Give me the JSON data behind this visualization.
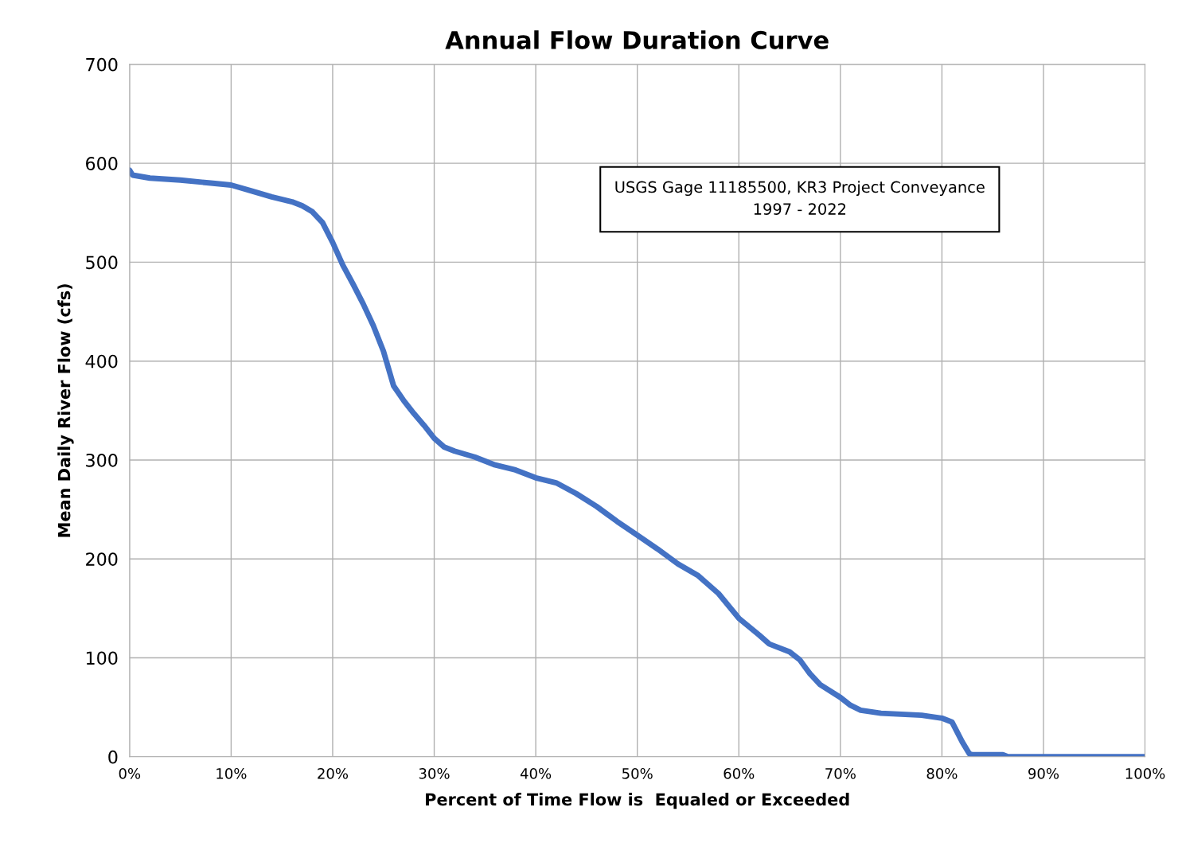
{
  "chart_data": {
    "type": "line",
    "title": "Annual Flow Duration Curve",
    "xlabel": "Percent of Time Flow is  Equaled or Exceeded",
    "ylabel": "Mean Daily River Flow (cfs)",
    "annotations": [
      "USGS Gage 11185500, KR3 Project Conveyance\n1997 - 2022"
    ],
    "x": [
      0,
      0.3,
      2,
      5,
      8,
      10,
      12,
      13,
      14,
      16,
      17,
      18,
      19,
      20,
      21,
      22,
      23,
      24,
      25,
      26,
      27,
      28,
      29,
      30,
      31,
      32,
      34,
      36,
      38,
      40,
      42,
      44,
      46,
      48,
      50,
      52,
      54,
      56,
      58,
      60,
      62,
      63,
      65,
      66,
      67,
      68,
      70,
      71,
      72,
      74,
      76,
      78,
      80,
      81,
      82,
      82.7,
      83,
      86,
      86.5,
      100
    ],
    "series": [
      {
        "color": "#4472c4",
        "values": [
          593,
          588,
          585,
          583,
          580,
          578,
          572,
          569,
          566,
          561,
          557,
          551,
          540,
          520,
          497,
          478,
          458,
          436,
          410,
          375,
          360,
          347,
          335,
          322,
          313,
          309,
          303,
          295,
          290,
          282,
          277,
          266,
          253,
          238,
          224,
          210,
          195,
          183,
          165,
          140,
          123,
          114,
          106,
          98,
          84,
          73,
          60,
          52,
          47,
          44,
          43,
          42,
          39,
          35,
          15,
          3,
          2,
          2,
          0,
          0
        ]
      }
    ],
    "xlim": [
      0,
      100
    ],
    "ylim": [
      0,
      700
    ],
    "xticks": [
      {
        "value": 0,
        "label": "0%"
      },
      {
        "value": 10,
        "label": "10%"
      },
      {
        "value": 20,
        "label": "20%"
      },
      {
        "value": 30,
        "label": "30%"
      },
      {
        "value": 40,
        "label": "40%"
      },
      {
        "value": 50,
        "label": "50%"
      },
      {
        "value": 60,
        "label": "60%"
      },
      {
        "value": 70,
        "label": "70%"
      },
      {
        "value": 80,
        "label": "80%"
      },
      {
        "value": 90,
        "label": "90%"
      },
      {
        "value": 100,
        "label": "100%"
      }
    ],
    "yticks": [
      0,
      100,
      200,
      300,
      400,
      500,
      600,
      700
    ],
    "grid": true,
    "marker": "none",
    "line_style": "solid"
  }
}
